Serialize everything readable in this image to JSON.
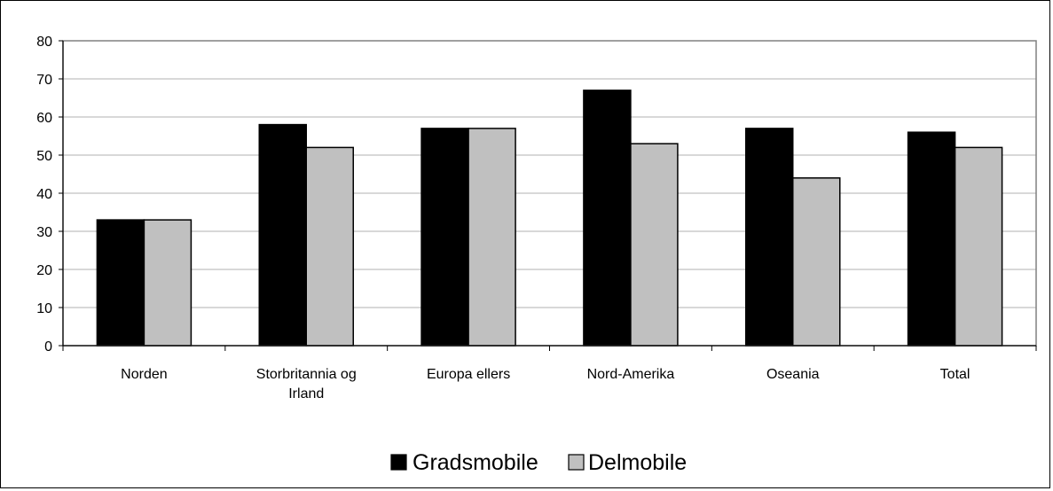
{
  "chart_data": {
    "type": "bar",
    "categories": [
      [
        "Norden"
      ],
      [
        "Storbritannia og",
        "Irland"
      ],
      [
        "Europa ellers"
      ],
      [
        "Nord-Amerika"
      ],
      [
        "Oseania"
      ],
      [
        "Total"
      ]
    ],
    "series": [
      {
        "name": "Gradsmobile",
        "color": "#000000",
        "values": [
          33,
          58,
          57,
          67,
          57,
          56
        ]
      },
      {
        "name": "Delmobile",
        "color": "#c0c0c0",
        "values": [
          33,
          52,
          57,
          53,
          44,
          52
        ]
      }
    ],
    "title": "",
    "xlabel": "",
    "ylabel": "",
    "ylim": [
      0,
      80
    ],
    "yticks": [
      0,
      10,
      20,
      30,
      40,
      50,
      60,
      70,
      80
    ],
    "grid": true,
    "legend_position": "bottom"
  }
}
